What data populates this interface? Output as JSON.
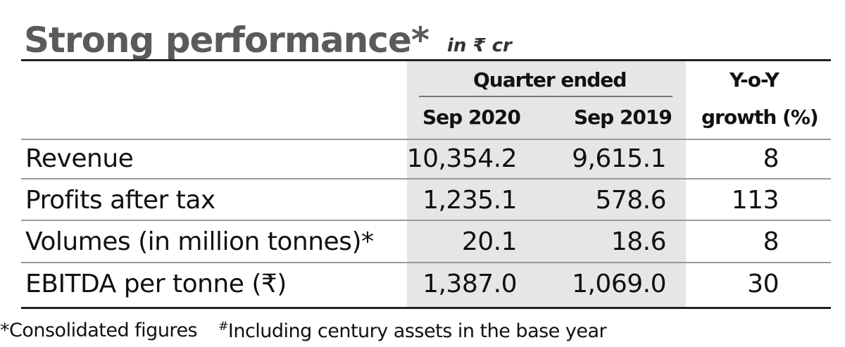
{
  "title": "Strong performance*",
  "unit": "in ₹ cr",
  "header": {
    "group_label": "Quarter ended",
    "col1": "Sep 2020",
    "col2": "Sep 2019",
    "col3_line1": "Y-o-Y",
    "col3_line2": "growth (%)"
  },
  "rows": [
    {
      "label": "Revenue",
      "sep2020": "10,354.2",
      "sep2019": "9,615.1",
      "growth": "8"
    },
    {
      "label": "Profits after tax",
      "sep2020": "1,235.1",
      "sep2019": "578.6",
      "growth": "113"
    },
    {
      "label": "Volumes (in million tonnes)*",
      "sep2020": "20.1",
      "sep2019": "18.6",
      "growth": "8"
    },
    {
      "label": "EBITDA per tonne (₹)",
      "sep2020": "1,387.0",
      "sep2019": "1,069.0",
      "growth": "30"
    }
  ],
  "footnotes": {
    "note1": "*Consolidated figures",
    "note2_mark": "#",
    "note2": "Including century assets in the base year"
  },
  "colors": {
    "title": "#5a5a5a",
    "shade": "#e6e6e6",
    "rule": "#222222"
  },
  "chart_data": {
    "type": "table",
    "title": "Strong performance*",
    "subtitle": "in ₹ cr",
    "columns": [
      "Sep 2020",
      "Sep 2019",
      "Y-o-Y growth (%)"
    ],
    "rows": [
      {
        "label": "Revenue",
        "values": [
          10354.2,
          9615.1,
          8
        ]
      },
      {
        "label": "Profits after tax",
        "values": [
          1235.1,
          578.6,
          113
        ]
      },
      {
        "label": "Volumes (in million tonnes)*",
        "values": [
          20.1,
          18.6,
          8
        ]
      },
      {
        "label": "EBITDA per tonne (₹)",
        "values": [
          1387.0,
          1069.0,
          30
        ]
      }
    ]
  }
}
